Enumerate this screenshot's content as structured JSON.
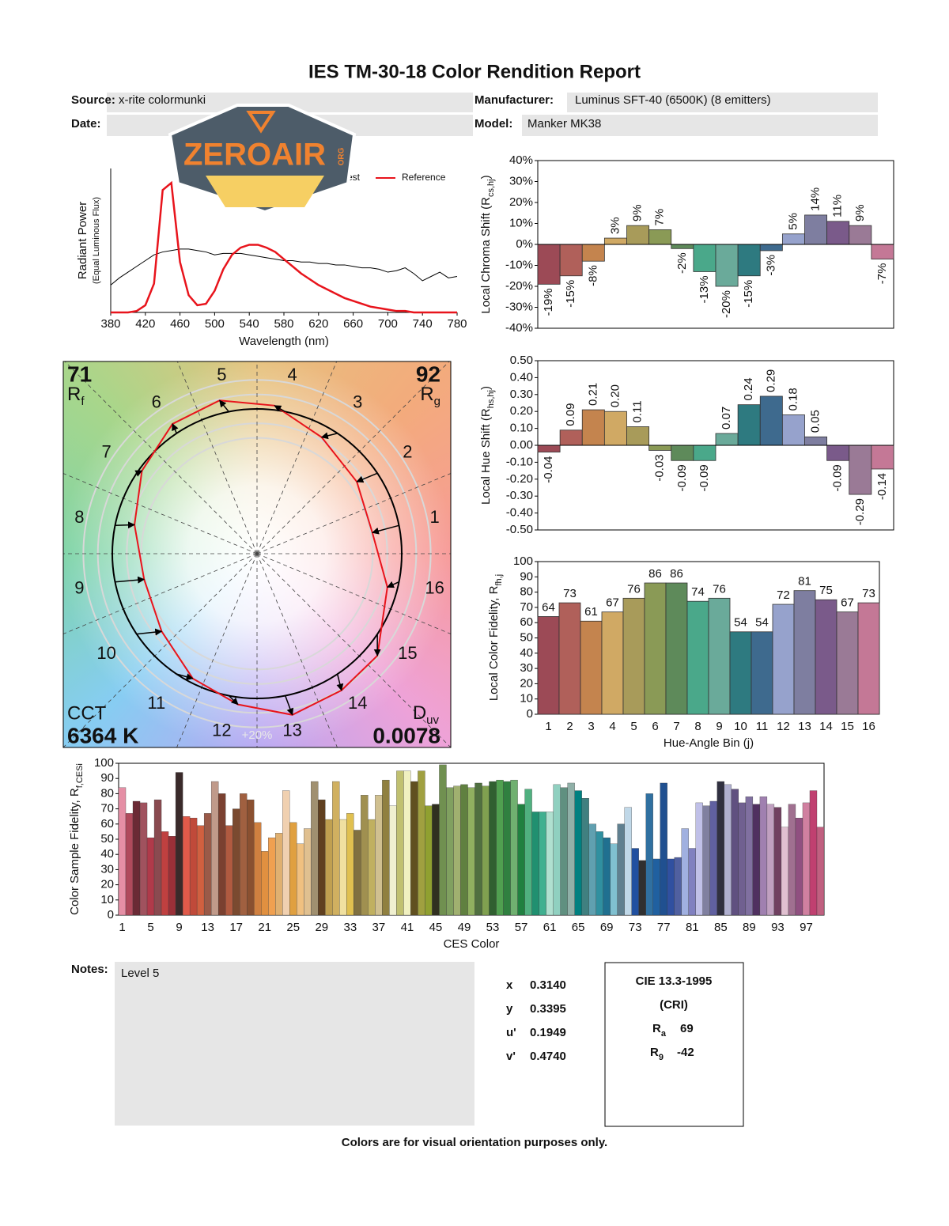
{
  "header": {
    "title": "IES TM-30-18 Color Rendition Report",
    "source_label": "Source:",
    "source": "x-rite colormunki",
    "manufacturer_label": "Manufacturer:",
    "manufacturer": "Luminus SFT-40 (6500K) (8 emitters)",
    "date_label": "Date:",
    "model_label": "Model:",
    "model": "Manker MK38"
  },
  "logo": {
    "name": "ZEROAIR",
    "suffix": "ORG"
  },
  "chart_data": [
    {
      "type": "line",
      "xlabel": "Wavelength (nm)",
      "ylabel": "Radiant Power",
      "ylabel_note": "(Equal Luminous Flux)",
      "x": [
        380,
        390,
        400,
        410,
        420,
        430,
        440,
        450,
        460,
        470,
        480,
        490,
        500,
        510,
        520,
        530,
        540,
        550,
        560,
        570,
        580,
        590,
        600,
        610,
        620,
        630,
        640,
        650,
        660,
        670,
        680,
        690,
        700,
        710,
        720,
        730,
        740,
        750,
        760,
        770,
        780
      ],
      "series": [
        {
          "name": "Test",
          "color": "#000000",
          "values": [
            0.19,
            0.24,
            0.28,
            0.32,
            0.36,
            0.4,
            0.42,
            0.43,
            0.44,
            0.44,
            0.43,
            0.42,
            0.4,
            0.41,
            0.41,
            0.41,
            0.4,
            0.39,
            0.38,
            0.37,
            0.36,
            0.36,
            0.35,
            0.35,
            0.34,
            0.34,
            0.33,
            0.33,
            0.32,
            0.31,
            0.31,
            0.3,
            0.28,
            0.29,
            0.31,
            0.27,
            0.22,
            0.25,
            0.28,
            0.24,
            0.25
          ]
        },
        {
          "name": "Reference",
          "color": "#e8141c",
          "values": [
            0,
            0,
            0,
            0.01,
            0.05,
            0.2,
            0.85,
            0.9,
            0.35,
            0.12,
            0.05,
            0.06,
            0.15,
            0.3,
            0.4,
            0.45,
            0.47,
            0.47,
            0.45,
            0.42,
            0.37,
            0.32,
            0.27,
            0.23,
            0.19,
            0.16,
            0.13,
            0.1,
            0.08,
            0.06,
            0.04,
            0.03,
            0.02,
            0.01,
            0.01,
            0,
            0,
            0,
            0,
            0,
            0
          ]
        }
      ],
      "xlim": [
        380,
        780
      ],
      "ylim": [
        0,
        1
      ],
      "xticks": [
        380,
        420,
        460,
        500,
        540,
        580,
        620,
        660,
        700,
        740,
        780
      ],
      "legend": "top-right"
    },
    {
      "type": "bar",
      "ylabel": [
        "Local Chroma Shift (R",
        "cs,hj",
        ")"
      ],
      "values": [
        -19,
        -15,
        -8,
        3,
        9,
        7,
        -2,
        -13,
        -20,
        -15,
        -3,
        5,
        14,
        11,
        9,
        -7
      ],
      "value_labels": [
        "-19%",
        "-15%",
        "-8%",
        "3%",
        "9%",
        "7%",
        "-2%",
        "-13%",
        "-20%",
        "-15%",
        "-3%",
        "5%",
        "14%",
        "11%",
        "9%",
        "-7%"
      ],
      "colors": [
        "#9c4a56",
        "#b0605a",
        "#c4844e",
        "#d0a964",
        "#a89b5a",
        "#8a9a56",
        "#5e8a5a",
        "#4aa88a",
        "#6aaa9a",
        "#2e7a80",
        "#3e6a8e",
        "#96a2cc",
        "#7e7ea0",
        "#7a5a8a",
        "#9a7a96",
        "#c47896"
      ],
      "ylim": [
        -40,
        40
      ],
      "yticks": [
        {
          "value": -40,
          "label": "-40%"
        },
        {
          "value": -30,
          "label": "-30%"
        },
        {
          "value": -20,
          "label": "-20%"
        },
        {
          "value": -10,
          "label": "-10%"
        },
        {
          "value": 0,
          "label": "0%"
        },
        {
          "value": 10,
          "label": "10%"
        },
        {
          "value": 20,
          "label": "20%"
        },
        {
          "value": 30,
          "label": "30%"
        },
        {
          "value": 40,
          "label": "40%"
        }
      ],
      "label_style": "rotated"
    },
    {
      "type": "bar",
      "ylabel": [
        "Local Hue Shift (R",
        "hs,hj",
        ")"
      ],
      "values": [
        -0.04,
        0.09,
        0.21,
        0.2,
        0.11,
        -0.03,
        -0.09,
        -0.09,
        0.07,
        0.24,
        0.29,
        0.18,
        0.05,
        -0.09,
        -0.29,
        -0.14
      ],
      "value_labels": [
        "-0.04",
        "0.09",
        "0.21",
        "0.20",
        "0.11",
        "-0.03",
        "-0.09",
        "-0.09",
        "0.07",
        "0.24",
        "0.29",
        "0.18",
        "0.05",
        "-0.09",
        "-0.29",
        "-0.14"
      ],
      "colors": [
        "#9c4a56",
        "#b0605a",
        "#c4844e",
        "#d0a964",
        "#a89b5a",
        "#8a9a56",
        "#5e8a5a",
        "#4aa88a",
        "#6aaa9a",
        "#2e7a80",
        "#3e6a8e",
        "#96a2cc",
        "#7e7ea0",
        "#7a5a8a",
        "#9a7a96",
        "#c47896"
      ],
      "ylim": [
        -0.5,
        0.5
      ],
      "yticks": [
        {
          "value": -0.5,
          "label": "-0.50"
        },
        {
          "value": -0.4,
          "label": "-0.40"
        },
        {
          "value": -0.3,
          "label": "-0.30"
        },
        {
          "value": -0.2,
          "label": "-0.20"
        },
        {
          "value": -0.1,
          "label": "-0.10"
        },
        {
          "value": 0,
          "label": "0.00"
        },
        {
          "value": 0.1,
          "label": "0.10"
        },
        {
          "value": 0.2,
          "label": "0.20"
        },
        {
          "value": 0.3,
          "label": "0.30"
        },
        {
          "value": 0.4,
          "label": "0.40"
        },
        {
          "value": 0.5,
          "label": "0.50"
        }
      ],
      "label_style": "rotated"
    },
    {
      "type": "bar",
      "xlabel": "Hue-Angle Bin (j)",
      "ylabel": [
        "Local Color Fidelity, R",
        "fh,j"
      ],
      "categories": [
        1,
        2,
        3,
        4,
        5,
        6,
        7,
        8,
        9,
        10,
        11,
        12,
        13,
        14,
        15,
        16
      ],
      "values": [
        64,
        73,
        61,
        67,
        76,
        86,
        86,
        74,
        76,
        54,
        54,
        72,
        81,
        75,
        67,
        73
      ],
      "colors": [
        "#9c4a56",
        "#b0605a",
        "#c4844e",
        "#d0a964",
        "#a89b5a",
        "#8a9a56",
        "#5e8a5a",
        "#4aa88a",
        "#6aaa9a",
        "#2e7a80",
        "#3e6a8e",
        "#96a2cc",
        "#7e7ea0",
        "#7a5a8a",
        "#9a7a96",
        "#c47896"
      ],
      "ylim": [
        0,
        100
      ],
      "yticks": [
        0,
        10,
        20,
        30,
        40,
        50,
        60,
        70,
        80,
        90,
        100
      ],
      "label_style": "flat"
    },
    {
      "type": "vector",
      "rf": 71,
      "rf_label": "R",
      "rf_sub": "f",
      "rg": 92,
      "rg_label": "R",
      "rg_sub": "g",
      "cct_label": "CCT",
      "cct": "6364 K",
      "duv_label": "D",
      "duv_sub": "uv",
      "duv": "0.0078",
      "ring_label": "+20%",
      "reference_color": "#000000",
      "test_color": "#e8141c"
    },
    {
      "type": "bar",
      "xlabel": "CES Color",
      "ylabel": [
        "Color Sample Fidelity, R",
        "f,CESi"
      ],
      "categories": [
        1,
        null,
        null,
        null,
        5,
        null,
        null,
        null,
        9,
        null,
        null,
        null,
        13,
        null,
        null,
        null,
        17,
        null,
        null,
        null,
        21,
        null,
        null,
        null,
        25,
        null,
        null,
        null,
        29,
        null,
        null,
        null,
        33,
        null,
        null,
        null,
        37,
        null,
        null,
        null,
        41,
        null,
        null,
        null,
        45,
        null,
        null,
        null,
        49,
        null,
        null,
        null,
        53,
        null,
        null,
        null,
        57,
        null,
        null,
        null,
        61,
        null,
        null,
        null,
        65,
        null,
        null,
        null,
        69,
        null,
        null,
        null,
        73,
        null,
        null,
        null,
        77,
        null,
        null,
        null,
        81,
        null,
        null,
        null,
        85,
        null,
        null,
        null,
        89,
        null,
        null,
        null,
        93,
        null,
        null,
        null,
        97,
        null,
        null
      ],
      "values": [
        84,
        67,
        75,
        74,
        51,
        76,
        55,
        52,
        94,
        65,
        64,
        59,
        67,
        88,
        80,
        59,
        70,
        80,
        76,
        61,
        42,
        51,
        54,
        82,
        61,
        47,
        57,
        88,
        76,
        63,
        88,
        63,
        67,
        56,
        79,
        63,
        79,
        89,
        72,
        95,
        95,
        88,
        95,
        72,
        73,
        99,
        84,
        85,
        86,
        84,
        87,
        85,
        88,
        89,
        88,
        89,
        73,
        83,
        68,
        68,
        68,
        86,
        84,
        87,
        82,
        77,
        60,
        55,
        51,
        47,
        60,
        71,
        44,
        36,
        80,
        37,
        87,
        37,
        38,
        57,
        44,
        74,
        72,
        75,
        88,
        86,
        83,
        74,
        78,
        73,
        78,
        73,
        71,
        58,
        73,
        64,
        74,
        82,
        58
      ],
      "colors": [
        "#e58fa5",
        "#b04a5c",
        "#6b2a35",
        "#a0525e",
        "#b03a4a",
        "#8a4a50",
        "#c04040",
        "#9a3038",
        "#3a2a2a",
        "#e05a4a",
        "#c04a3a",
        "#d06040",
        "#9a5a48",
        "#c09a8a",
        "#7a4030",
        "#b05a40",
        "#7a4a30",
        "#a06040",
        "#8a5030",
        "#d08040",
        "#e09040",
        "#f0a050",
        "#e0b070",
        "#f0d0b0",
        "#e0a040",
        "#f0c080",
        "#e0c090",
        "#a09070",
        "#604020",
        "#c0a050",
        "#d0b060",
        "#f0e0a0",
        "#e0c050",
        "#807040",
        "#a09050",
        "#c0b060",
        "#d0c090",
        "#908040",
        "#f0f0d0",
        "#c0c070",
        "#f0f0c0",
        "#605020",
        "#a0a040",
        "#90a030",
        "#303020",
        "#709050",
        "#80a060",
        "#a0b070",
        "#608040",
        "#90b060",
        "#507040",
        "#80a050",
        "#306030",
        "#50a050",
        "#308040",
        "#70b070",
        "#208040",
        "#50b080",
        "#209070",
        "#40b090",
        "#b0e0d0",
        "#90d0c0",
        "#609080",
        "#90b0a8",
        "#008080",
        "#408080",
        "#60a0b0",
        "#3090a0",
        "#207090",
        "#80c0d0",
        "#608090",
        "#c0d8e8",
        "#2050a0",
        "#303030",
        "#3070a0",
        "#2060a0",
        "#205090",
        "#3050a0",
        "#5060a0",
        "#a0b0e0",
        "#8080c0",
        "#c0c0e8",
        "#8080a0",
        "#6060a0",
        "#303040",
        "#b0b0d0",
        "#605080",
        "#706090",
        "#8070a0",
        "#503060",
        "#a080b0",
        "#c0a0c0",
        "#704060",
        "#e0c0d0",
        "#a07090",
        "#905080",
        "#d080a0",
        "#c04070",
        "#c06080"
      ],
      "ylim": [
        0,
        100
      ],
      "yticks": [
        0,
        10,
        20,
        30,
        40,
        50,
        60,
        70,
        80,
        90,
        100
      ]
    }
  ],
  "notes": {
    "label": "Notes:",
    "text": "Level 5"
  },
  "chromaticity": {
    "rows": [
      {
        "label": "x",
        "value": "0.3140"
      },
      {
        "label": "y",
        "value": "0.3395"
      },
      {
        "label": "u'",
        "value": "0.1949"
      },
      {
        "label": "v'",
        "value": "0.4740"
      }
    ]
  },
  "cri": {
    "title": "CIE 13.3-1995",
    "subtitle": "(CRI)",
    "ra_label": "R",
    "ra_sub": "a",
    "ra": 69,
    "r9_label": "R",
    "r9_sub": "9",
    "r9": -42
  },
  "footer": "Colors are for visual orientation purposes only."
}
